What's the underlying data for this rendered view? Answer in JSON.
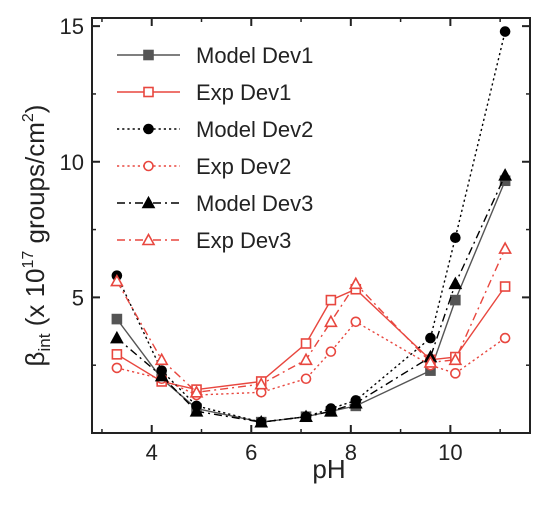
{
  "chart_data": {
    "type": "line",
    "xlabel": "pH",
    "ylabel": "β_int (x 10^17 groups/cm^2)",
    "ylabel_parts": {
      "symbol": "β",
      "subscript": "int",
      "open": " (x 10",
      "exponent": "17",
      "middle": " groups/cm",
      "exponent2": "2",
      "close": ")"
    },
    "xlim": [
      2.8,
      11.6
    ],
    "ylim": [
      0,
      15.3
    ],
    "xticks": [
      4,
      6,
      8,
      10
    ],
    "xtick_labels": [
      "4",
      "6",
      "8",
      "10"
    ],
    "yticks": [
      5,
      10,
      15
    ],
    "ytick_labels": [
      "5",
      "10",
      "15"
    ],
    "grid": false,
    "legend_position": "top-left",
    "series": [
      {
        "name": "Model Dev1",
        "color": "#555555",
        "line": "solid",
        "marker": "square-filled",
        "x": [
          3.3,
          4.2,
          4.9,
          6.2,
          7.1,
          7.6,
          8.1,
          9.6,
          10.1,
          11.1
        ],
        "y": [
          4.2,
          2.0,
          0.9,
          0.4,
          0.6,
          0.8,
          1.0,
          2.3,
          4.9,
          9.3
        ]
      },
      {
        "name": "Exp Dev1",
        "color": "#e8473f",
        "line": "solid",
        "marker": "square-open",
        "x": [
          3.3,
          4.2,
          4.9,
          6.2,
          7.1,
          7.6,
          8.1,
          9.6,
          10.1,
          11.1
        ],
        "y": [
          2.9,
          1.9,
          1.6,
          1.9,
          3.3,
          4.9,
          5.3,
          2.7,
          2.8,
          5.4
        ]
      },
      {
        "name": "Model Dev2",
        "color": "#000000",
        "line": "dotted",
        "marker": "circle-filled",
        "x": [
          3.3,
          4.2,
          4.9,
          6.2,
          7.1,
          7.6,
          8.1,
          9.6,
          10.1,
          11.1
        ],
        "y": [
          5.8,
          2.3,
          1.0,
          0.4,
          0.6,
          0.9,
          1.2,
          3.5,
          7.2,
          14.8
        ]
      },
      {
        "name": "Exp Dev2",
        "color": "#e8473f",
        "line": "dotted",
        "marker": "circle-open",
        "x": [
          3.3,
          4.2,
          4.9,
          6.2,
          7.1,
          7.6,
          8.1,
          9.6,
          10.1,
          11.1
        ],
        "y": [
          2.4,
          2.0,
          1.4,
          1.5,
          2.0,
          3.0,
          4.1,
          2.5,
          2.2,
          3.5
        ]
      },
      {
        "name": "Model Dev3",
        "color": "#000000",
        "line": "dashdot",
        "marker": "triangle-filled",
        "x": [
          3.3,
          4.2,
          4.9,
          6.2,
          7.1,
          7.6,
          8.1,
          9.6,
          10.1,
          11.1
        ],
        "y": [
          3.5,
          2.1,
          0.8,
          0.4,
          0.6,
          0.8,
          1.1,
          2.8,
          5.5,
          9.5
        ]
      },
      {
        "name": "Exp Dev3",
        "color": "#e8473f",
        "line": "dashdot",
        "marker": "triangle-open",
        "x": [
          3.3,
          4.2,
          4.9,
          6.2,
          7.1,
          7.6,
          8.1,
          9.6,
          10.1,
          11.1
        ],
        "y": [
          5.6,
          2.7,
          1.5,
          1.8,
          2.7,
          4.1,
          5.5,
          2.6,
          2.7,
          6.8
        ]
      }
    ]
  }
}
